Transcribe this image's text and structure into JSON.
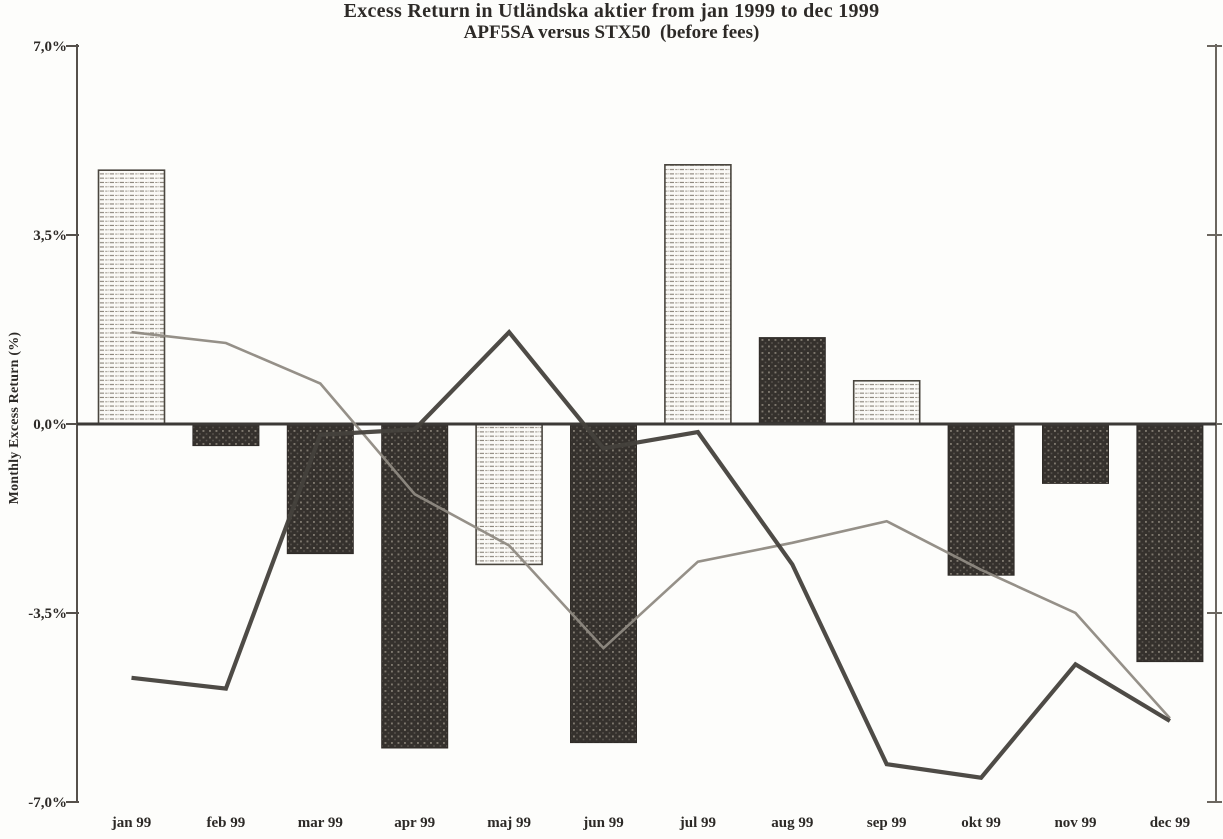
{
  "title": {
    "line1": "Excess Return in Utländska aktier from jan 1999 to dec 1999",
    "line2": "APF5SA versus STX50  (before fees)"
  },
  "y_axis": {
    "label": "Monthly Excess Return (%)"
  },
  "chart_data": {
    "type": "bar",
    "title": "Excess Return in Utländska aktier from jan 1999 to dec 1999 — APF5SA versus STX50 (before fees)",
    "ylabel": "Monthly Excess Return (%)",
    "xlabel": "",
    "ylim": [
      -7,
      7
    ],
    "yticks": {
      "values": [
        7,
        3.5,
        0,
        -3.5,
        -7
      ],
      "labels": [
        "7,0%",
        "3,5%",
        "0,0%",
        "-3,5%",
        "-7,0%"
      ]
    },
    "grid": "off",
    "legend": "none",
    "categories": [
      "jan 99",
      "feb 99",
      "mar 99",
      "apr 99",
      "maj 99",
      "jun 99",
      "jul 99",
      "aug 99",
      "sep 99",
      "okt 99",
      "nov 99",
      "dec 99"
    ],
    "series": [
      {
        "name": "monthly-excess-return-bars",
        "type": "bar",
        "values": [
          4.7,
          -0.4,
          -2.4,
          -6.0,
          -2.6,
          -5.9,
          4.8,
          1.6,
          0.8,
          -2.8,
          -1.1,
          -4.4
        ],
        "bar_styles": [
          "light",
          "dark",
          "dark",
          "dark",
          "light",
          "dark",
          "light",
          "dark",
          "light",
          "dark",
          "dark",
          "dark"
        ]
      },
      {
        "name": "dark-line",
        "type": "line",
        "values": [
          -4.7,
          -4.9,
          -0.2,
          -0.1,
          1.7,
          -0.45,
          -0.15,
          -2.6,
          -6.3,
          -6.55,
          -4.45,
          -5.5
        ]
      },
      {
        "name": "gray-line",
        "type": "line",
        "values": [
          1.7,
          1.5,
          0.75,
          -1.3,
          -2.25,
          -4.15,
          -2.55,
          -2.2,
          -1.8,
          -2.7,
          -3.5,
          -5.45
        ]
      }
    ]
  },
  "style": {
    "background": "#fdfdfb",
    "text_color": "#2d2a27",
    "axis_color": "#55504b",
    "zero_line_color": "#3c3936",
    "dark_line_color": "#45413c",
    "gray_line_color": "#8f8a82",
    "dark_bar_bg": "#35312d",
    "dark_bar_dot": "#7e786e",
    "dark_bar_dot2": "#5a554f",
    "light_bar_bg": "#faf9f6",
    "light_bar_stripe": "#8c867c",
    "light_bar_border": "#4a463f"
  }
}
